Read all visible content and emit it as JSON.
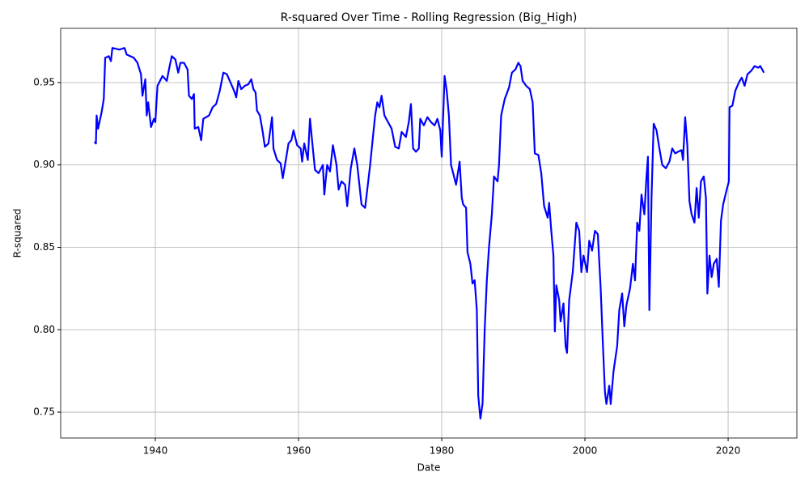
{
  "chart_data": {
    "type": "line",
    "title": "R-squared Over Time - Rolling Regression (Big_High)",
    "xlabel": "Date",
    "ylabel": "R-squared",
    "color": "#0000ff",
    "grid": true,
    "xlim": [
      1926.78,
      2029.6
    ],
    "ylim": [
      0.7343,
      0.9829
    ],
    "xticks": [
      1940,
      1960,
      1980,
      2000,
      2020
    ],
    "yticks": [
      0.75,
      {
        "value": 0.8,
        "label": "0.80"
      },
      0.85,
      {
        "value": 0.9,
        "label": "0.90"
      },
      0.95
    ],
    "x": [
      1931.5,
      1931.7,
      1931.8,
      1932,
      1932.5,
      1932.8,
      1933,
      1933.5,
      1933.8,
      1934,
      1935,
      1935.7,
      1936,
      1937,
      1937.5,
      1938,
      1938.2,
      1938.6,
      1938.8,
      1939,
      1939.4,
      1939.8,
      1940,
      1940.3,
      1941,
      1941.6,
      1942,
      1942.3,
      1942.8,
      1943.2,
      1943.5,
      1944,
      1944.5,
      1944.7,
      1945.1,
      1945.4,
      1945.5,
      1946,
      1946.4,
      1946.7,
      1947.5,
      1948,
      1948.5,
      1949,
      1949.5,
      1950,
      1950.5,
      1951,
      1951.3,
      1951.6,
      1952,
      1952.5,
      1953,
      1953.4,
      1953.7,
      1954,
      1954.2,
      1954.6,
      1955,
      1955.3,
      1955.8,
      1956.3,
      1956.5,
      1957,
      1957.5,
      1957.8,
      1958.3,
      1958.6,
      1959,
      1959.3,
      1959.8,
      1960.3,
      1960.5,
      1960.8,
      1961.3,
      1961.6,
      1962,
      1962.3,
      1962.8,
      1963.4,
      1963.6,
      1964,
      1964.4,
      1964.8,
      1965.3,
      1965.6,
      1966,
      1966.5,
      1966.8,
      1967.3,
      1967.8,
      1968.2,
      1968.5,
      1968.8,
      1969.3,
      1969.6,
      1970,
      1970.3,
      1970.7,
      1971,
      1971.3,
      1971.6,
      1972,
      1972.5,
      1973,
      1973.5,
      1974,
      1974.4,
      1975,
      1975.4,
      1975.7,
      1976,
      1976.4,
      1976.8,
      1977,
      1977.5,
      1978,
      1978.5,
      1979,
      1979.4,
      1979.8,
      1980,
      1980.4,
      1980.7,
      1981,
      1981.3,
      1981.6,
      1982,
      1982.5,
      1982.8,
      1983,
      1983.4,
      1983.6,
      1984,
      1984.3,
      1984.6,
      1984.9,
      1985.1,
      1985.4,
      1985.7,
      1986,
      1986.3,
      1986.6,
      1987,
      1987.3,
      1987.8,
      1988,
      1988.3,
      1988.8,
      1989.4,
      1989.8,
      1990.3,
      1990.7,
      1991,
      1991.3,
      1991.8,
      1992.3,
      1992.7,
      1993,
      1993.5,
      1993.9,
      1994.3,
      1994.8,
      1995,
      1995.3,
      1995.6,
      1995.8,
      1996,
      1996.4,
      1996.6,
      1997,
      1997.3,
      1997.5,
      1997.8,
      1998.3,
      1998.8,
      1999.2,
      1999.5,
      1999.8,
      2000.3,
      2000.6,
      2001,
      2001.4,
      2001.8,
      2002.2,
      2002.5,
      2002.8,
      2003,
      2003.4,
      2003.6,
      2004,
      2004.5,
      2004.8,
      2005.2,
      2005.5,
      2005.8,
      2006.3,
      2006.7,
      2007,
      2007.3,
      2007.6,
      2007.9,
      2008.3,
      2008.6,
      2008.8,
      2009,
      2009.3,
      2009.6,
      2010,
      2010.4,
      2010.8,
      2011.3,
      2011.8,
      2012.2,
      2012.6,
      2013,
      2013.5,
      2013.7,
      2014,
      2014.3,
      2014.6,
      2014.9,
      2015.3,
      2015.6,
      2015.9,
      2016.2,
      2016.6,
      2016.9,
      2017.1,
      2017.4,
      2017.7,
      2018,
      2018.4,
      2018.7,
      2019,
      2019.3,
      2019.8,
      2020.1,
      2020.2,
      2020.6,
      2021,
      2021.5,
      2021.9,
      2022.3,
      2022.7,
      2023.2,
      2023.7,
      2024.2,
      2024.5,
      2025
    ],
    "values": [
      0.914,
      0.913,
      0.93,
      0.922,
      0.932,
      0.94,
      0.965,
      0.966,
      0.963,
      0.971,
      0.97,
      0.971,
      0.967,
      0.965,
      0.962,
      0.955,
      0.942,
      0.952,
      0.93,
      0.938,
      0.923,
      0.928,
      0.926,
      0.948,
      0.954,
      0.951,
      0.96,
      0.966,
      0.964,
      0.956,
      0.962,
      0.962,
      0.958,
      0.942,
      0.94,
      0.943,
      0.922,
      0.923,
      0.915,
      0.928,
      0.93,
      0.935,
      0.937,
      0.945,
      0.956,
      0.955,
      0.95,
      0.945,
      0.941,
      0.951,
      0.946,
      0.948,
      0.949,
      0.952,
      0.946,
      0.944,
      0.933,
      0.93,
      0.92,
      0.911,
      0.913,
      0.929,
      0.91,
      0.903,
      0.901,
      0.892,
      0.905,
      0.913,
      0.915,
      0.921,
      0.912,
      0.91,
      0.902,
      0.913,
      0.903,
      0.928,
      0.91,
      0.897,
      0.895,
      0.9,
      0.882,
      0.9,
      0.896,
      0.912,
      0.9,
      0.885,
      0.89,
      0.888,
      0.875,
      0.898,
      0.91,
      0.9,
      0.888,
      0.876,
      0.874,
      0.885,
      0.9,
      0.913,
      0.93,
      0.938,
      0.935,
      0.942,
      0.93,
      0.926,
      0.922,
      0.911,
      0.91,
      0.92,
      0.917,
      0.926,
      0.937,
      0.91,
      0.908,
      0.91,
      0.928,
      0.924,
      0.929,
      0.926,
      0.924,
      0.928,
      0.921,
      0.905,
      0.954,
      0.945,
      0.93,
      0.9,
      0.895,
      0.888,
      0.902,
      0.88,
      0.876,
      0.874,
      0.847,
      0.84,
      0.828,
      0.83,
      0.812,
      0.76,
      0.746,
      0.755,
      0.8,
      0.83,
      0.85,
      0.87,
      0.893,
      0.89,
      0.9,
      0.93,
      0.94,
      0.947,
      0.956,
      0.958,
      0.962,
      0.96,
      0.951,
      0.948,
      0.946,
      0.938,
      0.907,
      0.906,
      0.895,
      0.875,
      0.868,
      0.877,
      0.86,
      0.845,
      0.799,
      0.827,
      0.818,
      0.805,
      0.816,
      0.79,
      0.786,
      0.818,
      0.835,
      0.865,
      0.86,
      0.835,
      0.845,
      0.835,
      0.854,
      0.848,
      0.86,
      0.858,
      0.825,
      0.792,
      0.762,
      0.755,
      0.766,
      0.755,
      0.775,
      0.79,
      0.812,
      0.822,
      0.802,
      0.815,
      0.825,
      0.84,
      0.83,
      0.865,
      0.86,
      0.882,
      0.87,
      0.893,
      0.905,
      0.812,
      0.88,
      0.925,
      0.921,
      0.91,
      0.9,
      0.898,
      0.902,
      0.91,
      0.907,
      0.908,
      0.909,
      0.903,
      0.929,
      0.912,
      0.878,
      0.87,
      0.865,
      0.886,
      0.868,
      0.89,
      0.893,
      0.88,
      0.822,
      0.845,
      0.832,
      0.84,
      0.843,
      0.826,
      0.866,
      0.876,
      0.885,
      0.89,
      0.935,
      0.936,
      0.945,
      0.95,
      0.953,
      0.948,
      0.955,
      0.957,
      0.96,
      0.959,
      0.96,
      0.956
    ]
  }
}
